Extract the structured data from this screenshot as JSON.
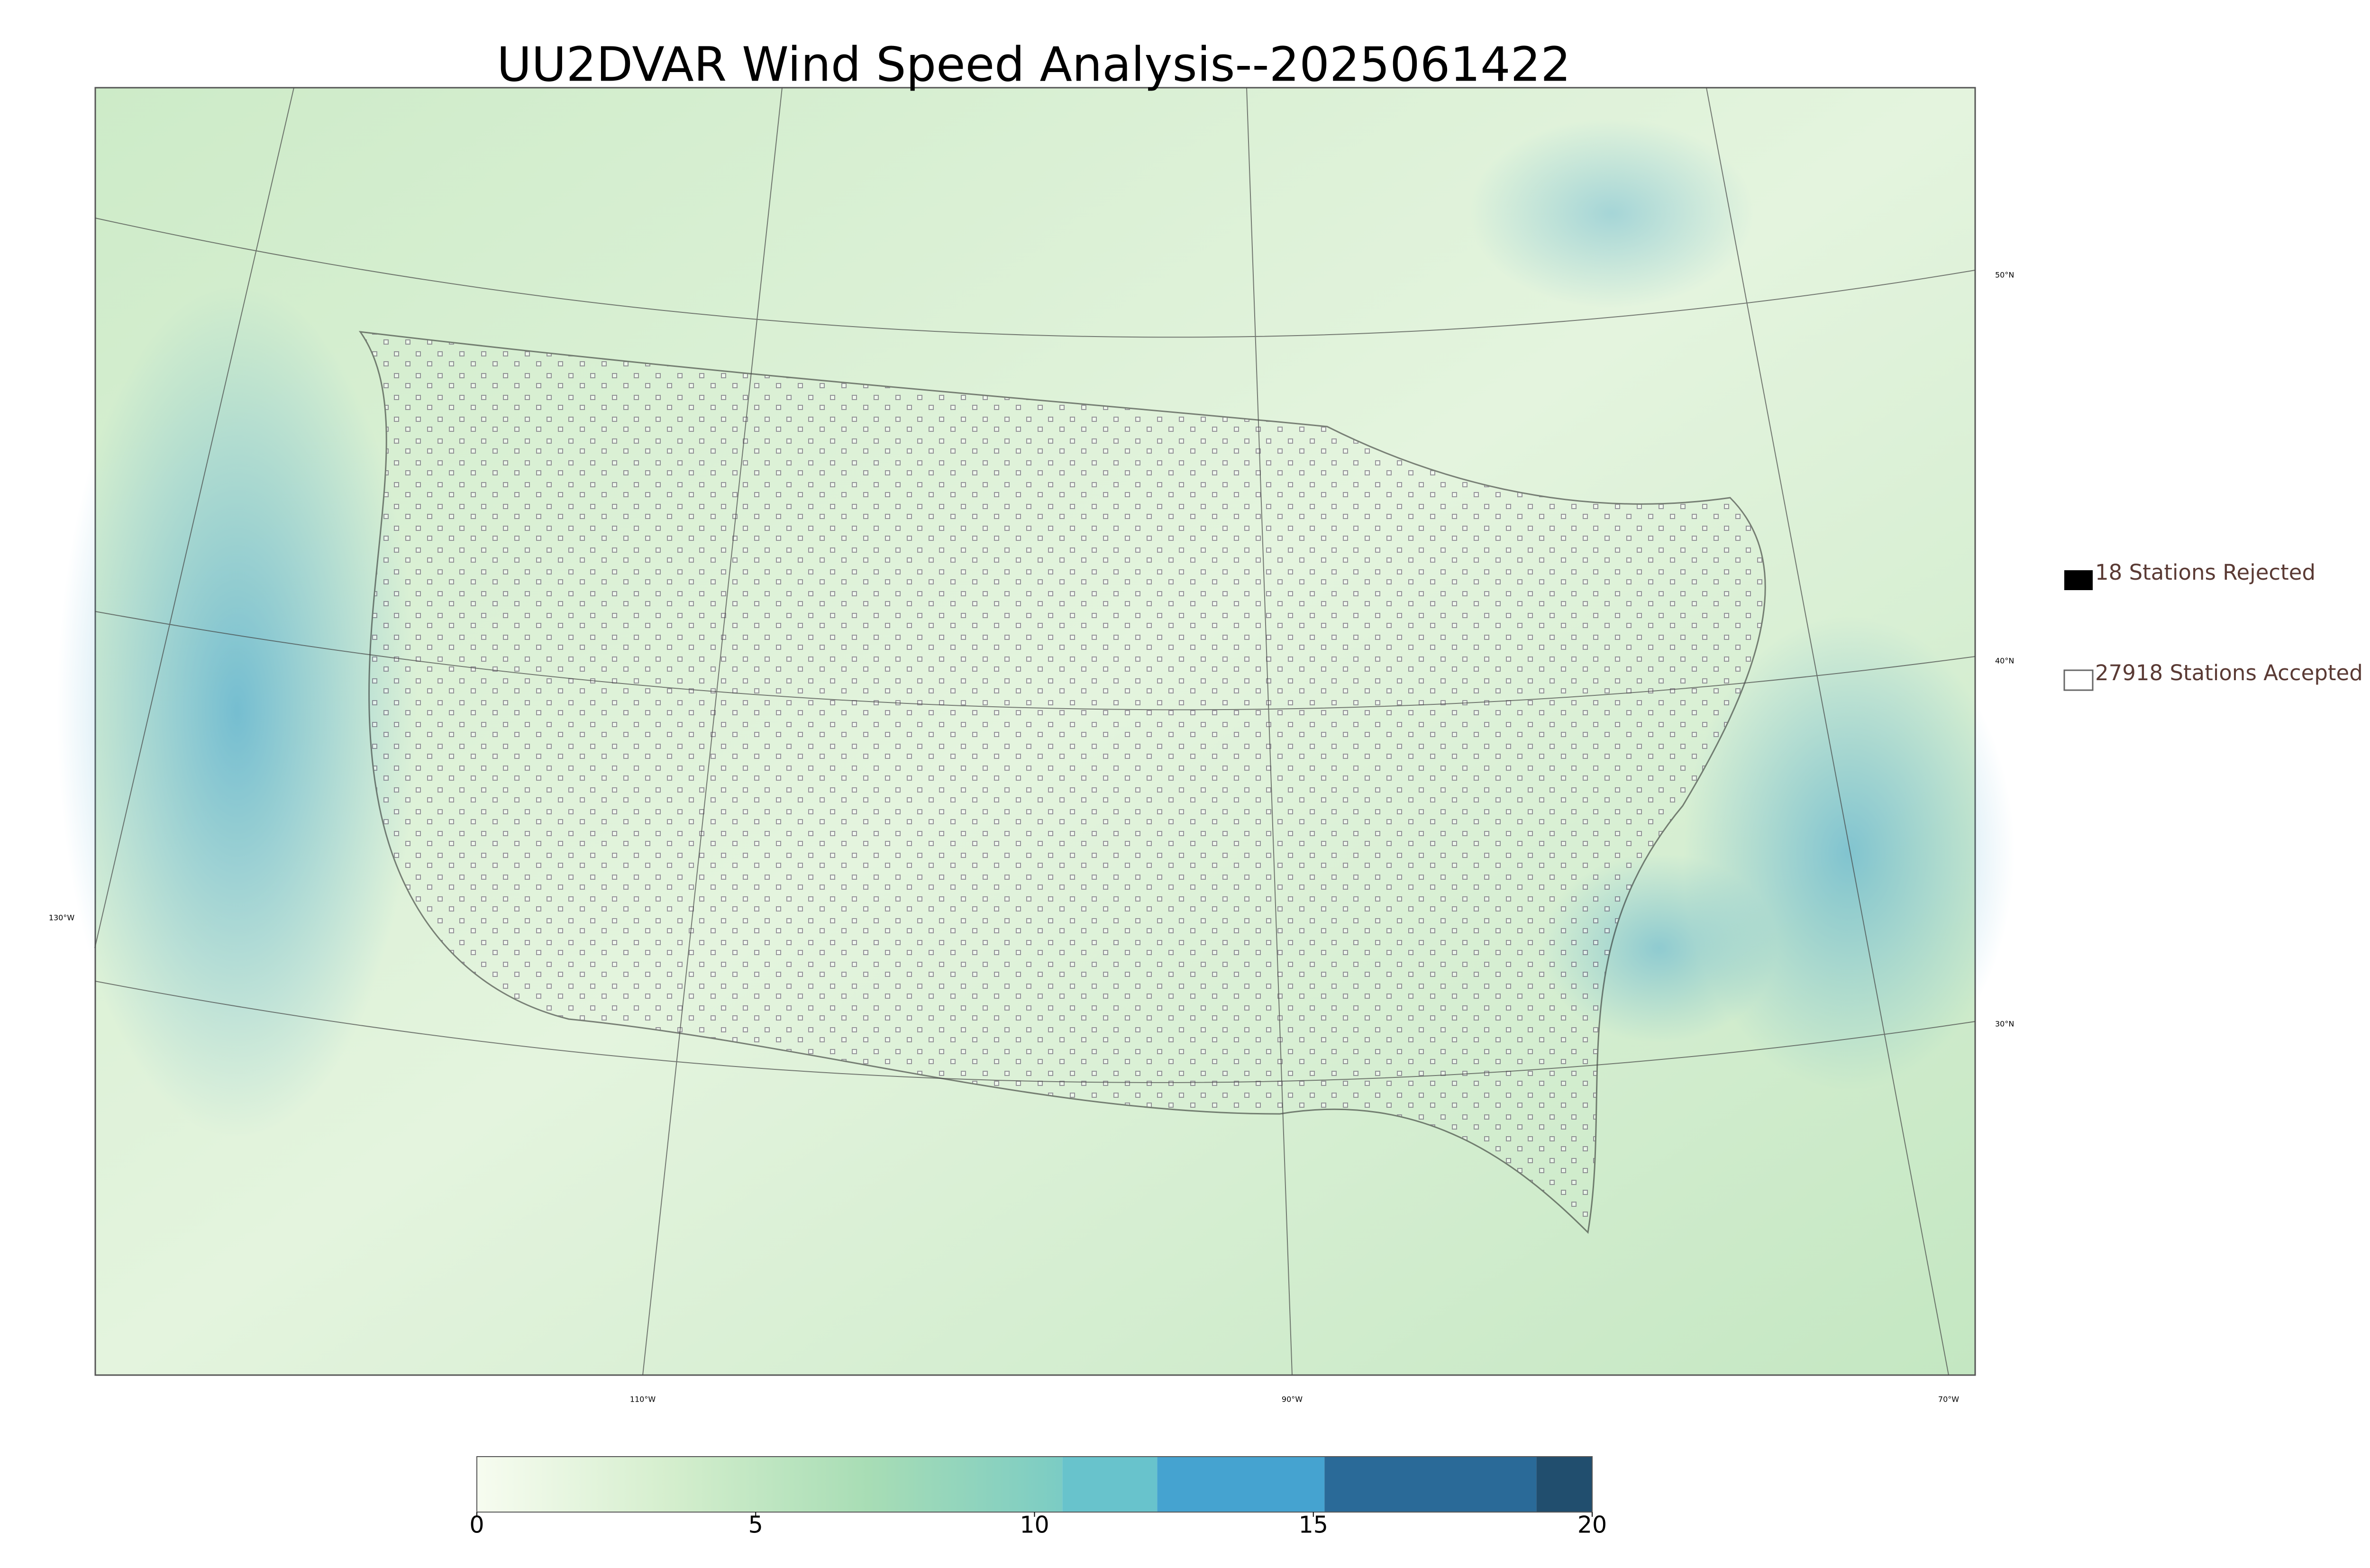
{
  "chart_data": {
    "type": "map",
    "title": "UU2DVAR Wind Speed Analysis--2025061422",
    "lat_labels": [
      "50°N",
      "40°N",
      "30°N"
    ],
    "lon_labels": [
      "130°W",
      "110°W",
      "90°W",
      "70°W"
    ],
    "legend": [
      "18 Stations Rejected",
      "27918 Stations Accepted"
    ],
    "colorbar": {
      "lim": [
        0,
        20
      ],
      "ticks": [
        0,
        5,
        10,
        15,
        20
      ],
      "bands": [
        {
          "from": 0,
          "to": 10.5,
          "colors": [
            "#f7fcf0",
            "#d4eecd",
            "#a8ddb5",
            "#7bccc4"
          ]
        },
        {
          "from": 10.5,
          "to": 12.2,
          "colors": [
            "#68c3cc"
          ]
        },
        {
          "from": 12.2,
          "to": 15.2,
          "colors": [
            "#45a3d0"
          ]
        },
        {
          "from": 15.2,
          "to": 19,
          "colors": [
            "#2a6a98"
          ]
        },
        {
          "from": 19,
          "to": 20,
          "colors": [
            "#214e6e"
          ]
        }
      ]
    }
  }
}
